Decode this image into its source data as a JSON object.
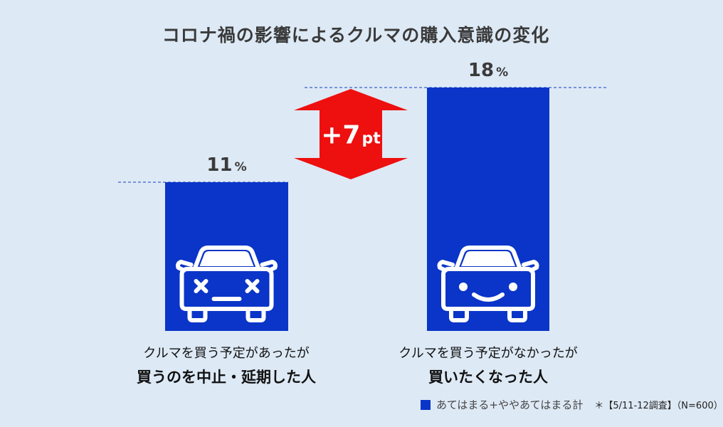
{
  "chart_data": {
    "type": "bar",
    "title": "コロナ禍の影響によるクルマの購入意識の変化",
    "unit": "%",
    "ylim": [
      0,
      18
    ],
    "categories": [
      {
        "line1": "クルマを買う予定があったが",
        "line2": "買うのを中止・延期した人"
      },
      {
        "line1": "クルマを買う予定がなかったが",
        "line2": "買いたくなった人"
      }
    ],
    "series": [
      {
        "name": "あてはまる+ややあてはまる計",
        "values": [
          11,
          18
        ]
      }
    ],
    "value_labels": [
      "11",
      "18"
    ],
    "difference_label": "+7",
    "difference_unit": "pt",
    "icons": [
      "sad-car-icon",
      "happy-car-icon"
    ],
    "colors": {
      "bar": "#0a35c8",
      "arrow": "#ee0f0f",
      "guide": "#3b62c9",
      "icon_stroke": "#ffffff"
    }
  },
  "footnote": "＊【5/11-12調査】（N=600）"
}
